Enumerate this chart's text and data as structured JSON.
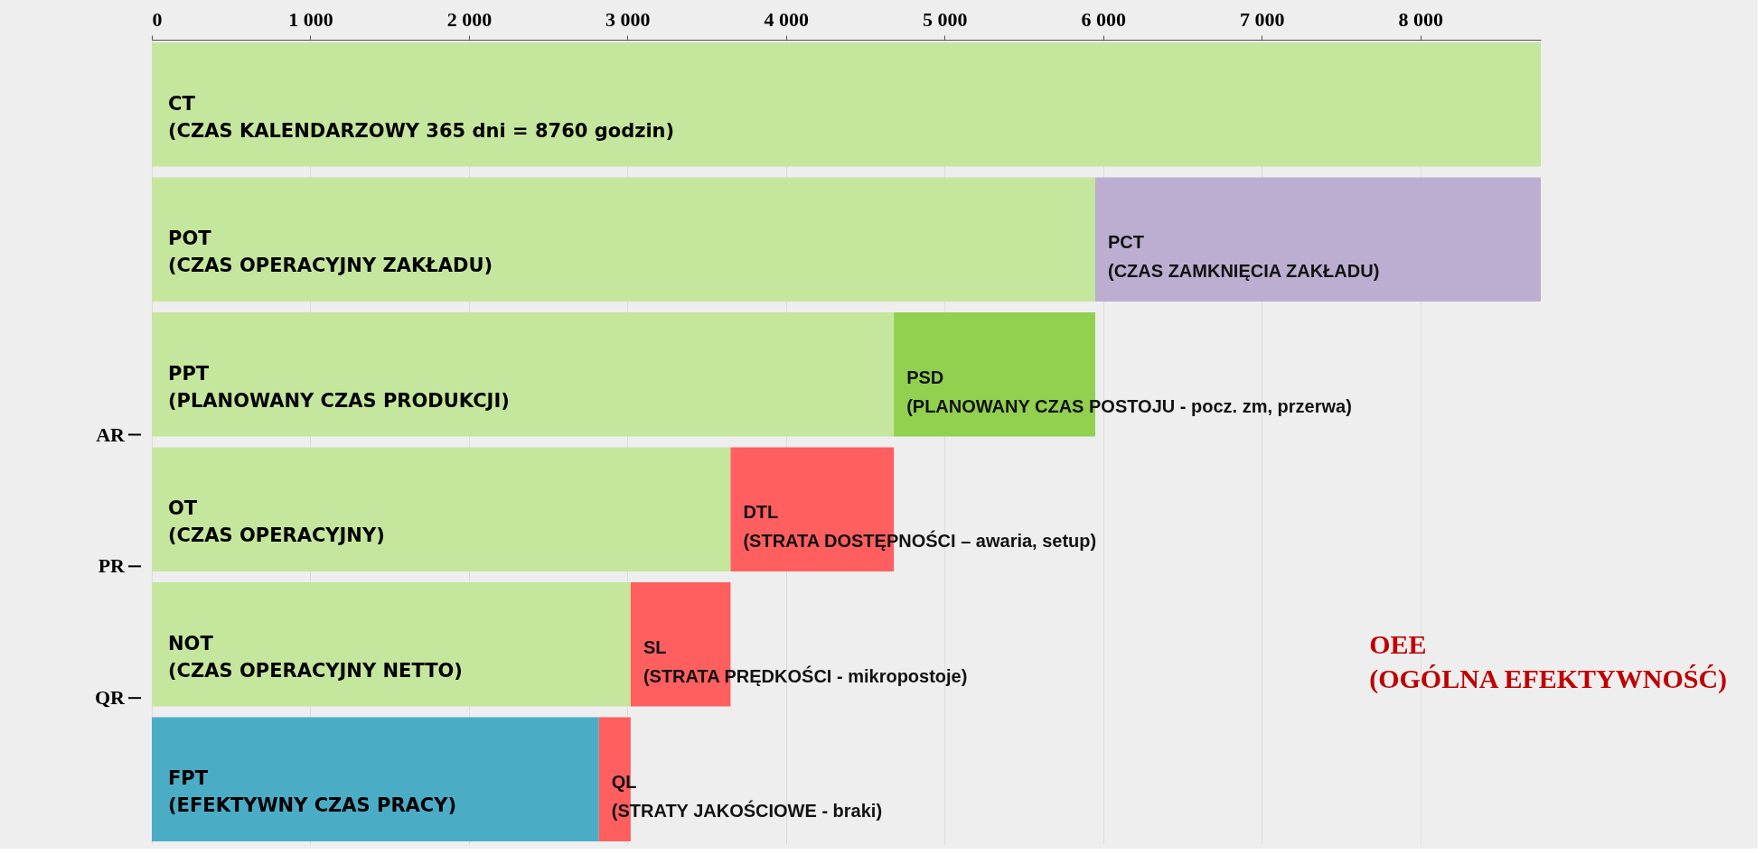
{
  "chart_data": {
    "type": "bar",
    "orientation": "horizontal",
    "stacked": true,
    "categories": [
      null,
      null,
      null,
      null,
      null,
      null
    ],
    "series": [
      {
        "colors": [
          "#c5e69d",
          "#c5e69d",
          "#c5e69d",
          "#c5e69d",
          "#c5e69d",
          "#4bacc6"
        ],
        "values": [
          8760,
          5950,
          4680,
          3650,
          3020,
          2820
        ],
        "value_labels": [
          "CT\n(CZAS KALENDARZOWY  365 dni = 8760 godzin)",
          "POT\n(CZAS OPERACYJNY ZAKŁADU)",
          "PPT\n(PLANOWANY CZAS PRODUKCJI)",
          "OT\n(CZAS OPERACYJNY)",
          "NOT\n(CZAS OPERACYJNY NETTO)",
          "FPT\n(EFEKTYWNY CZAS PRACY)"
        ]
      },
      {
        "colors": [
          null,
          "#bbaed0",
          "#92d050",
          "#ff5f5f",
          "#ff5f5f",
          "#ff5f5f"
        ],
        "values": [
          null,
          2810,
          1270,
          1030,
          630,
          200
        ],
        "value_labels": [
          null,
          "PCT\n(CZAS ZAMKNIĘCIA ZAKŁADU)",
          "PSD\n(PLANOWANY CZAS POSTOJU - pocz. zm, przerwa)",
          "DTL\n(STRATA DOSTĘPNOŚCI – awaria, setup)",
          "SL\n(STRATA PRĘDKOŚCI - mikropostoje)",
          "QL\n(STRATY JAKOŚCIOWE - braki)"
        ]
      }
    ],
    "xlim": [
      0,
      8760
    ],
    "xticks": [
      0,
      {
        "value": 1000,
        "label": "1 000"
      },
      {
        "value": 2000,
        "label": "2 000"
      },
      {
        "value": 3000,
        "label": "3 000"
      },
      {
        "value": 4000,
        "label": "4 000"
      },
      {
        "value": 5000,
        "label": "5 000"
      },
      {
        "value": 6000,
        "label": "6 000"
      },
      {
        "value": 7000,
        "label": "7 000"
      },
      {
        "value": 8000,
        "label": "8 000"
      }
    ],
    "grid": "x",
    "annotations": [
      "AR",
      "PR",
      "QR",
      "OEE\n(OGÓLNA EFEKTYWNOŚĆ)"
    ]
  }
}
